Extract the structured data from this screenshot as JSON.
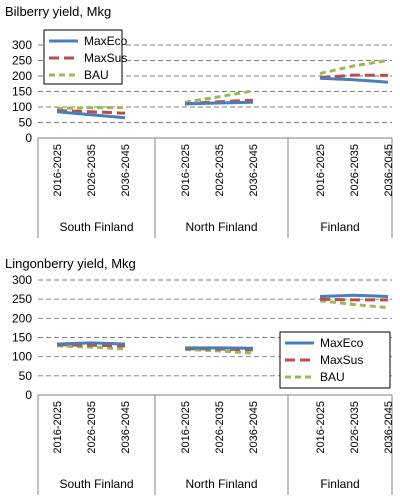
{
  "chart_data": [
    {
      "type": "line",
      "title": "Bilberry yield, Mkg",
      "xlabel": "",
      "ylabel": "",
      "ylim": [
        0,
        300
      ],
      "yticks": [
        0,
        50,
        100,
        150,
        200,
        250,
        300
      ],
      "grid": "dashed horizontal",
      "legend": "top-left",
      "periods": [
        "2016-2025",
        "2026-2035",
        "2036-2045"
      ],
      "regions": [
        "South Finland",
        "North Finland",
        "Finland"
      ],
      "series": [
        {
          "name": "MaxEco",
          "color": "#4a7ebb",
          "dash": "solid",
          "values": [
            [
              85,
              75,
              65
            ],
            [
              110,
              113,
              115
            ],
            [
              193,
              188,
              180
            ]
          ]
        },
        {
          "name": "MaxSus",
          "color": "#be4b48",
          "dash": "long-dash",
          "values": [
            [
              88,
              85,
              80
            ],
            [
              110,
              117,
              122
            ],
            [
              195,
              203,
              202
            ]
          ]
        },
        {
          "name": "BAU",
          "color": "#98b954",
          "dash": "dash",
          "values": [
            [
              95,
              98,
              98
            ],
            [
              115,
              133,
              152
            ],
            [
              208,
              233,
              250
            ]
          ]
        }
      ]
    },
    {
      "type": "line",
      "title": "Lingonberry yield, Mkg",
      "xlabel": "",
      "ylabel": "",
      "ylim": [
        0,
        300
      ],
      "yticks": [
        0,
        50,
        100,
        150,
        200,
        250,
        300
      ],
      "grid": "dashed horizontal",
      "legend": "right",
      "periods": [
        "2016-2025",
        "2026-2035",
        "2036-2045"
      ],
      "regions": [
        "South Finland",
        "North Finland",
        "Finland"
      ],
      "series": [
        {
          "name": "MaxEco",
          "color": "#4a7ebb",
          "dash": "solid",
          "values": [
            [
              133,
              136,
              133
            ],
            [
              123,
              123,
              122
            ],
            [
              257,
              260,
              257
            ]
          ]
        },
        {
          "name": "MaxSus",
          "color": "#be4b48",
          "dash": "long-dash",
          "values": [
            [
              131,
              130,
              128
            ],
            [
              121,
              120,
              118
            ],
            [
              250,
              248,
              248
            ]
          ]
        },
        {
          "name": "BAU",
          "color": "#98b954",
          "dash": "dash",
          "values": [
            [
              128,
              125,
              120
            ],
            [
              119,
              115,
              109
            ],
            [
              246,
              236,
              228
            ]
          ]
        }
      ]
    }
  ]
}
